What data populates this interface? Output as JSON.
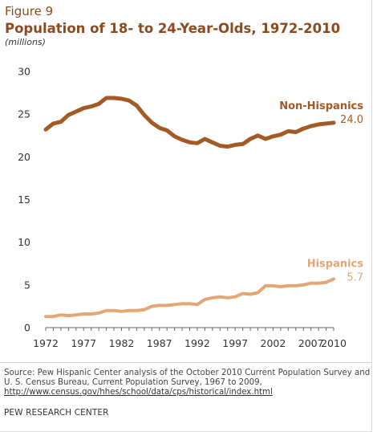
{
  "figure": {
    "label": "Figure 9",
    "title": "Population of 18- to 24-Year-Olds, 1972-2010",
    "subtitle": "(millions)"
  },
  "chart_data": {
    "type": "line",
    "title": "Population of 18- to 24-Year-Olds, 1972-2010",
    "ylabel": "(millions)",
    "xlabel": "",
    "xlim": [
      1972,
      2010
    ],
    "ylim": [
      0,
      30
    ],
    "x_ticks": [
      1972,
      1977,
      1982,
      1987,
      1992,
      1997,
      2002,
      2007,
      2010
    ],
    "y_ticks": [
      0,
      5,
      10,
      15,
      20,
      25,
      30
    ],
    "grid": false,
    "x": [
      1972,
      1973,
      1974,
      1975,
      1976,
      1977,
      1978,
      1979,
      1980,
      1981,
      1982,
      1983,
      1984,
      1985,
      1986,
      1987,
      1988,
      1989,
      1990,
      1991,
      1992,
      1993,
      1994,
      1995,
      1996,
      1997,
      1998,
      1999,
      2000,
      2001,
      2002,
      2003,
      2004,
      2005,
      2006,
      2007,
      2008,
      2009,
      2010
    ],
    "series": [
      {
        "name": "Non-Hispanics",
        "color": "#a35a24",
        "end_label": "24.0",
        "values": [
          23.2,
          23.9,
          24.1,
          24.9,
          25.3,
          25.7,
          25.9,
          26.2,
          26.9,
          26.9,
          26.8,
          26.6,
          26.0,
          24.9,
          24.0,
          23.4,
          23.1,
          22.4,
          22.0,
          21.7,
          21.6,
          22.1,
          21.7,
          21.3,
          21.2,
          21.4,
          21.5,
          22.1,
          22.5,
          22.1,
          22.4,
          22.6,
          23.0,
          22.9,
          23.3,
          23.6,
          23.8,
          23.9,
          24.0
        ]
      },
      {
        "name": "Hispanics",
        "color": "#e3a776",
        "end_label": "5.7",
        "values": [
          1.3,
          1.3,
          1.5,
          1.4,
          1.5,
          1.6,
          1.6,
          1.7,
          2.0,
          2.0,
          1.9,
          2.0,
          2.0,
          2.1,
          2.5,
          2.6,
          2.6,
          2.7,
          2.8,
          2.8,
          2.7,
          3.3,
          3.5,
          3.6,
          3.5,
          3.6,
          4.0,
          3.9,
          4.1,
          4.9,
          4.9,
          4.8,
          4.9,
          4.9,
          5.0,
          5.2,
          5.2,
          5.3,
          5.7
        ]
      }
    ]
  },
  "source": {
    "text": "Source: Pew Hispanic Center analysis of the October 2010 Current Population Survey and U. S. Census Bureau, Current Population Survey, 1967 to 2009,",
    "link": "http://www.census.gov/hhes/school/data/cps/historical/index.html"
  },
  "organization": "PEW RESEARCH CENTER"
}
